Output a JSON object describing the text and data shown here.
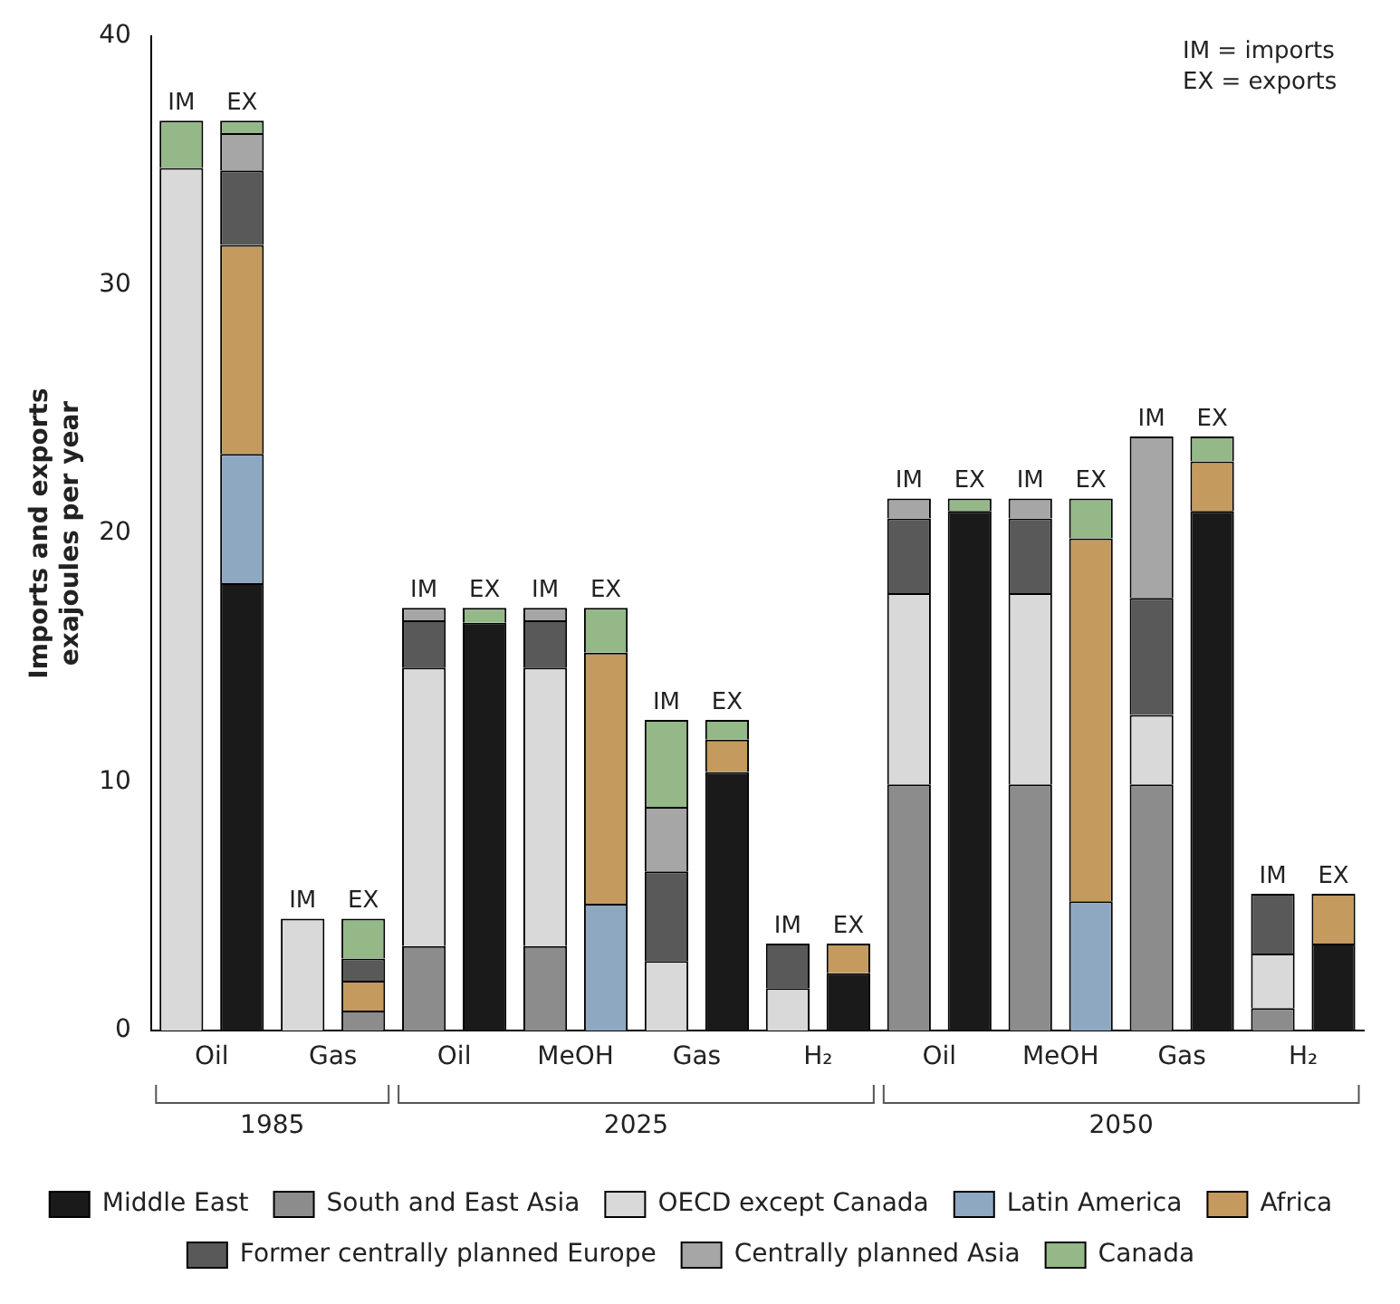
{
  "chart_data": {
    "type": "bar",
    "stacked": true,
    "ylabel": "Imports and exports\nexajoules per year",
    "categories": [
      "IM",
      "EX",
      "IM",
      "EX",
      "IM",
      "EX",
      "IM",
      "EX",
      "IM",
      "EX",
      "IM",
      "EX",
      "IM",
      "EX",
      "IM",
      "EX",
      "IM",
      "EX",
      "IM",
      "EX"
    ],
    "series": [
      {
        "name": "Middle East",
        "color": "#1a1a1a",
        "values": [
          null,
          18.0,
          null,
          null,
          null,
          16.4,
          null,
          null,
          null,
          10.4,
          null,
          2.3,
          null,
          20.9,
          null,
          null,
          null,
          20.9,
          null,
          3.5
        ]
      },
      {
        "name": "South and East Asia",
        "color": "#8c8c8c",
        "values": [
          null,
          null,
          null,
          0.8,
          3.4,
          null,
          3.4,
          null,
          null,
          null,
          null,
          null,
          9.9,
          null,
          9.9,
          null,
          9.9,
          null,
          0.9,
          null
        ]
      },
      {
        "name": "OECD except Canada",
        "color": "#d9d9d9",
        "values": [
          34.7,
          null,
          4.5,
          null,
          11.2,
          null,
          11.2,
          null,
          2.8,
          null,
          1.7,
          null,
          7.7,
          null,
          7.7,
          null,
          2.8,
          null,
          2.2,
          null
        ]
      },
      {
        "name": "Latin America",
        "color": "#8fa8c2",
        "values": [
          null,
          5.2,
          null,
          null,
          null,
          null,
          null,
          5.1,
          null,
          null,
          null,
          null,
          null,
          null,
          null,
          5.2,
          null,
          null,
          null,
          null
        ]
      },
      {
        "name": "Africa",
        "color": "#c49a5e",
        "values": [
          null,
          8.4,
          null,
          1.2,
          null,
          null,
          null,
          10.1,
          null,
          1.3,
          null,
          1.2,
          null,
          null,
          null,
          14.6,
          null,
          2.0,
          null,
          2.0
        ]
      },
      {
        "name": "Former centrally planned Europe",
        "color": "#595959",
        "values": [
          null,
          3.0,
          null,
          0.9,
          1.9,
          null,
          1.9,
          null,
          3.6,
          null,
          1.8,
          null,
          3.0,
          null,
          3.0,
          null,
          4.7,
          null,
          2.4,
          null
        ]
      },
      {
        "name": "Centrally planned Asia",
        "color": "#a6a6a6",
        "values": [
          null,
          1.5,
          null,
          null,
          0.5,
          null,
          0.5,
          null,
          2.6,
          null,
          null,
          null,
          0.8,
          null,
          0.8,
          null,
          6.5,
          null,
          null,
          null
        ]
      },
      {
        "name": "Canada",
        "color": "#94b888",
        "values": [
          1.9,
          0.5,
          null,
          1.6,
          null,
          0.6,
          null,
          1.8,
          3.5,
          0.8,
          null,
          null,
          null,
          0.5,
          null,
          1.6,
          null,
          1.0,
          null,
          null
        ]
      }
    ],
    "ylim": [
      0,
      40
    ],
    "yticks": [
      0,
      10,
      20,
      30,
      40
    ],
    "grid": false,
    "legend": "bottom",
    "annotations": [
      "Oil",
      "Gas",
      "Oil",
      "MeOH",
      "Gas",
      "H₂",
      "Oil",
      "MeOH",
      "Gas",
      "H₂",
      "1985",
      "2025",
      "2050",
      "IM = imports",
      "EX = exports"
    ]
  }
}
